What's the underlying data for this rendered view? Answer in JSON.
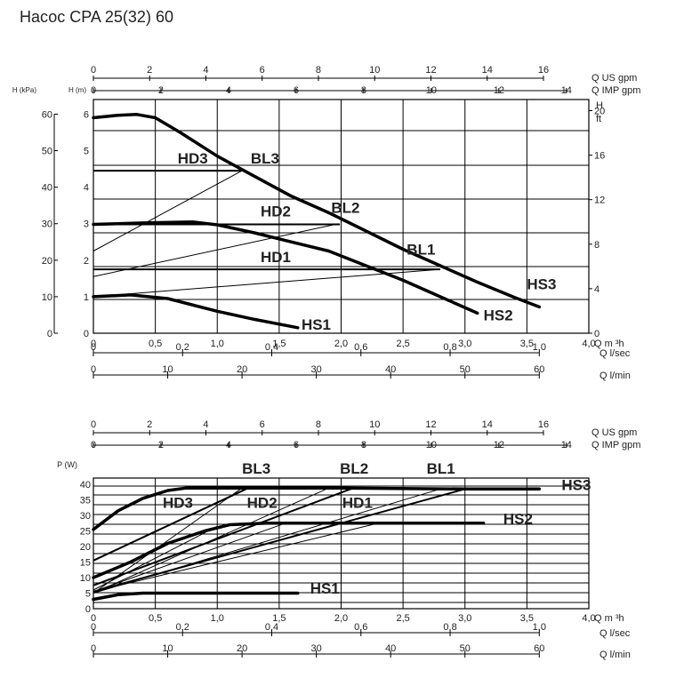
{
  "title": "Насос CPA 25(32) 60",
  "chart_data": [
    {
      "type": "line",
      "name_in_image": "head-flow curves",
      "x_units": {
        "m3h": {
          "label": "Q m ³h",
          "ticks": [
            "0",
            "0,5",
            "1,0",
            "1,5",
            "2,0",
            "2,5",
            "3,0",
            "3,5",
            "4,0"
          ],
          "range": [
            0,
            4.0
          ]
        },
        "lsec": {
          "label": "Q l/sec",
          "ticks": [
            "0",
            "0.2",
            "0.4",
            "0.6",
            "0.8",
            "1.0"
          ],
          "values": [
            0,
            0.2,
            0.4,
            0.6,
            0.8,
            1.0
          ]
        },
        "lmin": {
          "label": "Q l/min",
          "ticks": [
            "0",
            "10",
            "20",
            "30",
            "40",
            "50",
            "60"
          ],
          "values": [
            0,
            10,
            20,
            30,
            40,
            50,
            60
          ]
        },
        "usgpm": {
          "label": "Q US gpm",
          "ticks": [
            "0",
            "2",
            "4",
            "6",
            "8",
            "10",
            "12",
            "14",
            "16"
          ],
          "values": [
            0,
            2,
            4,
            6,
            8,
            10,
            12,
            14,
            16
          ]
        },
        "impgpm": {
          "label": "Q IMP gpm",
          "ticks": [
            "0",
            "2",
            "4",
            "6",
            "8",
            "10",
            "12",
            "14"
          ],
          "values": [
            0,
            2,
            4,
            6,
            8,
            10,
            12,
            14
          ]
        }
      },
      "y_left_kpa": {
        "label": "H (kPa)",
        "ticks": [
          "0",
          "10",
          "20",
          "30",
          "40",
          "50",
          "60"
        ],
        "values": [
          0,
          10,
          20,
          30,
          40,
          50,
          60
        ]
      },
      "y_left_m": {
        "label": "H (m)",
        "ticks": [
          "0",
          "1",
          "2",
          "3",
          "4",
          "5",
          "6"
        ],
        "values": [
          0,
          1,
          2,
          3,
          4,
          5,
          6
        ],
        "range": [
          0,
          6.4
        ]
      },
      "y_right_ft": {
        "label_top": "H",
        "label_bottom": "ft",
        "ticks": [
          "0",
          "4",
          "8",
          "12",
          "16",
          "20"
        ],
        "values": [
          0,
          4,
          8,
          12,
          16,
          20
        ]
      },
      "series": [
        {
          "name": "HS1",
          "style": "thick",
          "x": [
            0,
            0.3,
            0.6,
            1.0,
            1.3,
            1.65
          ],
          "y": [
            1.0,
            1.05,
            0.95,
            0.6,
            0.38,
            0.15
          ]
        },
        {
          "name": "HS2",
          "style": "thick",
          "x": [
            0,
            0.4,
            0.8,
            1.0,
            1.3,
            1.6,
            1.9,
            2.2,
            2.5,
            2.8,
            3.1
          ],
          "y": [
            2.98,
            3.02,
            3.05,
            2.97,
            2.75,
            2.5,
            2.25,
            1.85,
            1.45,
            1.0,
            0.55
          ]
        },
        {
          "name": "HS3",
          "style": "thick",
          "x": [
            0,
            0.2,
            0.35,
            0.5,
            0.7,
            1.0,
            1.3,
            1.6,
            1.9,
            2.2,
            2.5,
            2.8,
            3.1,
            3.4,
            3.6
          ],
          "y": [
            5.9,
            5.97,
            5.99,
            5.9,
            5.5,
            4.85,
            4.3,
            3.75,
            3.3,
            2.8,
            2.3,
            1.85,
            1.4,
            0.98,
            0.72
          ]
        },
        {
          "name": "HD3",
          "style": "medium",
          "x": [
            0,
            1.2
          ],
          "y": [
            4.45,
            4.45
          ]
        },
        {
          "name": "HD2",
          "style": "medium",
          "x": [
            0,
            1.99
          ],
          "y": [
            2.98,
            2.98
          ]
        },
        {
          "name": "HD1",
          "style": "medium",
          "x": [
            0,
            2.8
          ],
          "y": [
            1.75,
            1.75
          ]
        },
        {
          "name": "BL3",
          "style": "thin",
          "x": [
            0,
            1.2
          ],
          "y": [
            2.25,
            4.45
          ]
        },
        {
          "name": "BL2",
          "style": "thin",
          "x": [
            0,
            1.98
          ],
          "y": [
            1.55,
            3.0
          ]
        },
        {
          "name": "BL1",
          "style": "thin",
          "x": [
            0,
            2.8
          ],
          "y": [
            1.0,
            1.75
          ]
        }
      ],
      "labels": [
        {
          "text": "HD3",
          "x": 0.68,
          "y": 4.65
        },
        {
          "text": "BL3",
          "x": 1.27,
          "y": 4.65
        },
        {
          "text": "HD2",
          "x": 1.35,
          "y": 3.2
        },
        {
          "text": "BL2",
          "x": 1.92,
          "y": 3.3
        },
        {
          "text": "BL1",
          "x": 2.53,
          "y": 2.15
        },
        {
          "text": "HD1",
          "x": 1.35,
          "y": 1.95
        },
        {
          "text": "HS3",
          "x": 3.5,
          "y": 1.2
        },
        {
          "text": "HS2",
          "x": 3.15,
          "y": 0.35
        },
        {
          "text": "HS1",
          "x": 1.68,
          "y": 0.1
        }
      ]
    },
    {
      "type": "line",
      "name_in_image": "power-flow curves",
      "x_units": {
        "m3h": {
          "label": "Q m ³h",
          "ticks": [
            "0",
            "0,5",
            "1,0",
            "1,5",
            "2,0",
            "2,5",
            "3,0",
            "3,5",
            "4,0"
          ],
          "range": [
            0,
            4.0
          ]
        },
        "lsec": {
          "label": "Q l/sec",
          "ticks": [
            "0",
            "0.2",
            "0.4",
            "0.6",
            "0.8",
            "1.0"
          ],
          "values": [
            0,
            0.2,
            0.4,
            0.6,
            0.8,
            1.0
          ]
        },
        "lmin": {
          "label": "Q l/min",
          "ticks": [
            "0",
            "10",
            "20",
            "30",
            "40",
            "50",
            "60"
          ],
          "values": [
            0,
            10,
            20,
            30,
            40,
            50,
            60
          ]
        },
        "usgpm": {
          "label": "Q US gpm",
          "ticks": [
            "0",
            "2",
            "4",
            "6",
            "8",
            "10",
            "12",
            "14",
            "16"
          ],
          "values": [
            0,
            2,
            4,
            6,
            8,
            10,
            12,
            14,
            16
          ]
        },
        "impgpm": {
          "label": "Q IMP gpm",
          "ticks": [
            "0",
            "2",
            "4",
            "6",
            "8",
            "10",
            "12",
            "14"
          ],
          "values": [
            0,
            2,
            4,
            6,
            8,
            10,
            12,
            14
          ]
        }
      },
      "y_left": {
        "label": "P (W)",
        "ticks": [
          "0",
          "5",
          "10",
          "15",
          "20",
          "25",
          "30",
          "35",
          "40"
        ],
        "values": [
          0,
          5,
          10,
          15,
          20,
          25,
          30,
          35,
          40
        ],
        "range": [
          0,
          42
        ]
      },
      "series": [
        {
          "name": "HS1",
          "style": "thick",
          "x": [
            0,
            0.2,
            0.4,
            1.0,
            1.65
          ],
          "y": [
            3,
            4.5,
            5,
            5,
            5
          ]
        },
        {
          "name": "HS2",
          "style": "thick",
          "x": [
            0,
            0.3,
            0.6,
            0.9,
            1.1,
            1.4,
            2.0,
            2.5,
            3.0,
            3.15
          ],
          "y": [
            10,
            15,
            21,
            25,
            27,
            27.5,
            27.5,
            27.5,
            27.5,
            27.5
          ]
        },
        {
          "name": "HS3",
          "style": "thick",
          "x": [
            0,
            0.2,
            0.4,
            0.6,
            0.75,
            1.2,
            2.0,
            3.0,
            3.6
          ],
          "y": [
            25.5,
            31.5,
            35.5,
            38,
            38.8,
            38.8,
            38.8,
            38.5,
            38.5
          ]
        },
        {
          "name": "HD3",
          "style": "medium",
          "x": [
            0,
            1.25
          ],
          "y": [
            15.5,
            38.8
          ]
        },
        {
          "name": "HD2",
          "style": "medium",
          "x": [
            0,
            2.1
          ],
          "y": [
            7.5,
            38.8
          ]
        },
        {
          "name": "HD1",
          "style": "medium",
          "x": [
            0,
            3.0
          ],
          "y": [
            5.5,
            38.5
          ]
        },
        {
          "name": "BL3",
          "style": "thin",
          "x": [
            0,
            1.2
          ],
          "y": [
            5,
            38.8
          ]
        },
        {
          "name": "BL2",
          "style": "thin",
          "x": [
            0,
            1.9
          ],
          "y": [
            5,
            38.8
          ]
        },
        {
          "name": "BL1",
          "style": "thin",
          "x": [
            0,
            2.8
          ],
          "y": [
            5,
            38.5
          ]
        },
        {
          "name": "",
          "style": "thin",
          "x": [
            0,
            1.0
          ],
          "y": [
            6,
            26.5
          ]
        },
        {
          "name": "",
          "style": "thin",
          "x": [
            0,
            1.55
          ],
          "y": [
            5.5,
            27.5
          ]
        },
        {
          "name": "",
          "style": "thin",
          "x": [
            0,
            2.3
          ],
          "y": [
            5.5,
            27.5
          ]
        }
      ],
      "labels": [
        {
          "text": "BL3",
          "x": 1.2,
          "y": 43.5
        },
        {
          "text": "BL2",
          "x": 1.99,
          "y": 43.5
        },
        {
          "text": "BL1",
          "x": 2.69,
          "y": 43.5
        },
        {
          "text": "HD3",
          "x": 0.56,
          "y": 32.5
        },
        {
          "text": "HD2",
          "x": 1.24,
          "y": 32.5
        },
        {
          "text": "HD1",
          "x": 2.01,
          "y": 32.5
        },
        {
          "text": "HS3",
          "x": 3.78,
          "y": 38.2
        },
        {
          "text": "HS2",
          "x": 3.31,
          "y": 27.3
        },
        {
          "text": "HS1",
          "x": 1.75,
          "y": 4.8
        }
      ]
    }
  ]
}
